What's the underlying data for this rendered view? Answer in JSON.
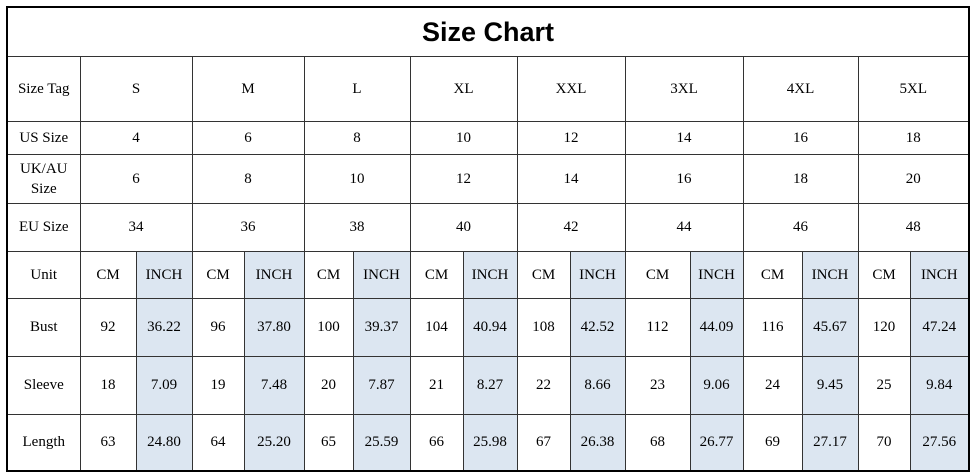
{
  "title": "Size Chart",
  "table": {
    "rows": [
      {
        "label": "Size Tag",
        "cells": [
          "S",
          "M",
          "L",
          "XL",
          "XXL",
          "3XL",
          "4XL",
          "5XL"
        ]
      },
      {
        "label": "US Size",
        "cells": [
          "4",
          "6",
          "8",
          "10",
          "12",
          "14",
          "16",
          "18"
        ]
      },
      {
        "label": "UK/AU Size",
        "cells": [
          "6",
          "8",
          "10",
          "12",
          "14",
          "16",
          "18",
          "20"
        ]
      },
      {
        "label": "EU Size",
        "cells": [
          "34",
          "36",
          "38",
          "40",
          "42",
          "44",
          "46",
          "48"
        ]
      },
      {
        "label": "Unit",
        "cells": [
          "CM",
          "INCH",
          "CM",
          "INCH",
          "CM",
          "INCH",
          "CM",
          "INCH",
          "CM",
          "INCH",
          "CM",
          "INCH",
          "CM",
          "INCH",
          "CM",
          "INCH"
        ]
      },
      {
        "label": "Bust",
        "cells": [
          "92",
          "36.22",
          "96",
          "37.80",
          "100",
          "39.37",
          "104",
          "40.94",
          "108",
          "42.52",
          "112",
          "44.09",
          "116",
          "45.67",
          "120",
          "47.24"
        ]
      },
      {
        "label": "Sleeve",
        "cells": [
          "18",
          "7.09",
          "19",
          "7.48",
          "20",
          "7.87",
          "21",
          "8.27",
          "22",
          "8.66",
          "23",
          "9.06",
          "24",
          "9.45",
          "25",
          "9.84"
        ]
      },
      {
        "label": "Length",
        "cells": [
          "63",
          "24.80",
          "64",
          "25.20",
          "65",
          "25.59",
          "66",
          "25.98",
          "67",
          "26.38",
          "68",
          "26.77",
          "69",
          "27.17",
          "70",
          "27.56"
        ]
      }
    ]
  }
}
